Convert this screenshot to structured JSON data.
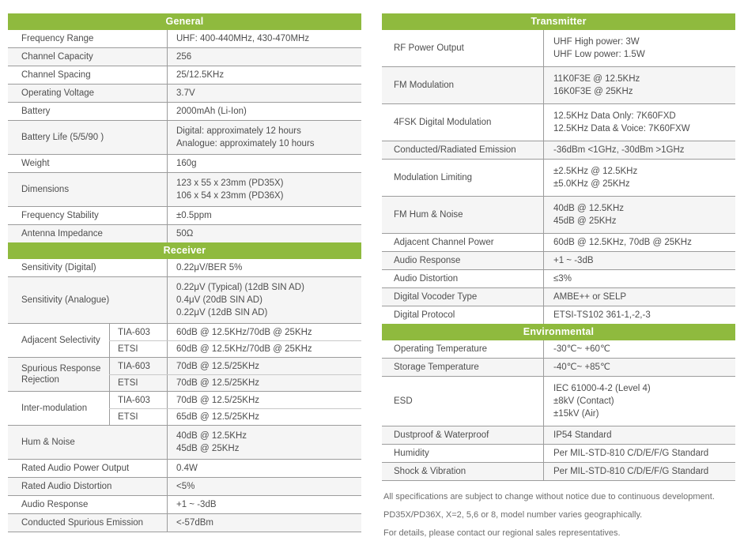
{
  "colors": {
    "header_green": "#8fba3e",
    "header_text": "#ffffff",
    "row_alt_bg": "#f5f5f5",
    "border": "#9c9c9c",
    "border_light": "#c9c9c9",
    "body_text": "#4e4e4e",
    "note_text": "#6d6d6d"
  },
  "left_table": {
    "sections": [
      {
        "header": "General",
        "rows": [
          {
            "label": "Frequency Range",
            "values": [
              "UHF: 400-440MHz, 430-470MHz"
            ]
          },
          {
            "label": "Channel Capacity",
            "values": [
              "256"
            ]
          },
          {
            "label": "Channel Spacing",
            "values": [
              "25/12.5KHz"
            ]
          },
          {
            "label": "Operating Voltage",
            "values": [
              "3.7V"
            ]
          },
          {
            "label": "Battery",
            "values": [
              "2000mAh (Li-Ion)"
            ]
          },
          {
            "label": "Battery Life (5/5/90 )",
            "values": [
              "Digital: approximately 12 hours",
              "Analogue: approximately 10 hours"
            ]
          },
          {
            "label": "Weight",
            "values": [
              "160g"
            ]
          },
          {
            "label": "Dimensions",
            "values": [
              "123 x 55 x 23mm (PD35X)",
              "106 x 54 x 23mm (PD36X)"
            ]
          },
          {
            "label": "Frequency Stability",
            "values": [
              "±0.5ppm"
            ]
          },
          {
            "label": "Antenna Impedance",
            "values": [
              "50Ω"
            ]
          }
        ]
      },
      {
        "header": "Receiver",
        "rows": [
          {
            "label": "Sensitivity (Digital)",
            "values": [
              "0.22μV/BER 5%"
            ]
          },
          {
            "label": "Sensitivity (Analogue)",
            "values": [
              "0.22μV (Typical) (12dB SIN AD)",
              "0.4μV (20dB SIN AD)",
              "0.22μV (12dB SIN AD)"
            ]
          },
          {
            "label": "Adjacent Selectivity",
            "sub": [
              {
                "std": "TIA-603",
                "value": "60dB @ 12.5KHz/70dB @ 25KHz"
              },
              {
                "std": "ETSI",
                "value": "60dB @ 12.5KHz/70dB @ 25KHz"
              }
            ]
          },
          {
            "label": "Spurious Response Rejection",
            "sub": [
              {
                "std": "TIA-603",
                "value": "70dB @ 12.5/25KHz"
              },
              {
                "std": "ETSI",
                "value": "70dB @ 12.5/25KHz"
              }
            ]
          },
          {
            "label": "Inter-modulation",
            "sub": [
              {
                "std": "TIA-603",
                "value": "70dB @ 12.5/25KHz"
              },
              {
                "std": "ETSI",
                "value": "65dB @ 12.5/25KHz"
              }
            ]
          },
          {
            "label": "Hum & Noise",
            "values": [
              "40dB @ 12.5KHz",
              "45dB @ 25KHz"
            ]
          },
          {
            "label": "Rated Audio Power Output",
            "values": [
              "0.4W"
            ]
          },
          {
            "label": "Rated Audio Distortion",
            "values": [
              "<5%"
            ]
          },
          {
            "label": "Audio Response",
            "values": [
              "+1 ~ -3dB"
            ]
          },
          {
            "label": "Conducted Spurious Emission",
            "values": [
              "<-57dBm"
            ]
          }
        ]
      }
    ]
  },
  "right_table": {
    "sections": [
      {
        "header": "Transmitter",
        "rows": [
          {
            "label": "RF Power Output",
            "values": [
              "UHF High power: 3W",
              "UHF Low power: 1.5W"
            ]
          },
          {
            "label": "FM Modulation",
            "values": [
              "11K0F3E @ 12.5KHz",
              "16K0F3E @ 25KHz"
            ]
          },
          {
            "label": "4FSK Digital Modulation",
            "values": [
              "12.5KHz Data Only: 7K60FXD",
              "12.5KHz Data & Voice: 7K60FXW"
            ]
          },
          {
            "label": "Conducted/Radiated Emission",
            "values": [
              "-36dBm <1GHz, -30dBm >1GHz"
            ]
          },
          {
            "label": "Modulation Limiting",
            "values": [
              "±2.5KHz @ 12.5KHz",
              "±5.0KHz @ 25KHz"
            ]
          },
          {
            "label": "FM Hum & Noise",
            "values": [
              "40dB @ 12.5KHz",
              "45dB @ 25KHz"
            ]
          },
          {
            "label": "Adjacent Channel Power",
            "values": [
              "60dB @ 12.5KHz, 70dB @ 25KHz"
            ]
          },
          {
            "label": "Audio Response",
            "values": [
              "+1 ~ -3dB"
            ]
          },
          {
            "label": "Audio Distortion",
            "values": [
              "≤3%"
            ]
          },
          {
            "label": "Digital Vocoder Type",
            "values": [
              "AMBE++ or SELP"
            ]
          },
          {
            "label": "Digital Protocol",
            "values": [
              "ETSI-TS102 361-1,-2,-3"
            ]
          }
        ]
      },
      {
        "header": "Environmental",
        "rows": [
          {
            "label": "Operating Temperature",
            "values": [
              "-30℃~ +60℃"
            ]
          },
          {
            "label": "Storage Temperature",
            "values": [
              "-40℃~ +85℃"
            ]
          },
          {
            "label": "ESD",
            "values": [
              "IEC 61000-4-2 (Level 4)",
              "±8kV (Contact)",
              "±15kV (Air)"
            ]
          },
          {
            "label": "Dustproof & Waterproof",
            "values": [
              "IP54 Standard"
            ]
          },
          {
            "label": "Humidity",
            "values": [
              "Per MIL-STD-810 C/D/E/F/G Standard"
            ]
          },
          {
            "label": "Shock & Vibration",
            "values": [
              "Per MIL-STD-810 C/D/E/F/G Standard"
            ]
          }
        ]
      }
    ]
  },
  "footnotes": [
    "All specifications are subject to change without notice due to continuous development.",
    "PD35X/PD36X, X=2, 5,6 or 8, model number varies geographically.",
    "For details, please contact our regional sales representatives."
  ]
}
